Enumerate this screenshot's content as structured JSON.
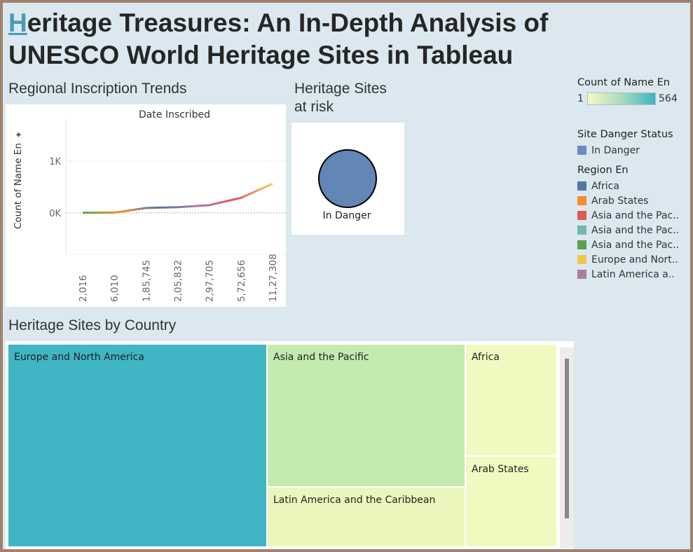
{
  "dashboard": {
    "title_first_letter": "H",
    "title_line1_rest": "eritage Treasures: An In-Depth Analysis of",
    "title_line2": "UNESCO World Heritage Sites in Tableau"
  },
  "line_chart": {
    "section_title": "Regional Inscription Trends",
    "chart_data": {
      "type": "line",
      "title": "Date Inscribed",
      "xlabel": "",
      "ylabel": "Count of Name En",
      "x_tick_labels": [
        "2,016",
        "6,010",
        "1,85,745",
        "2,05,832",
        "2,97,705",
        "5,72,656",
        "11,27,308"
      ],
      "x": [
        2016,
        6010,
        185745,
        205832,
        297705,
        572656,
        1127308
      ],
      "values": [
        2,
        5,
        95,
        110,
        150,
        290,
        565
      ],
      "y_tick_labels": [
        "0K",
        "1K"
      ],
      "ylim": [
        -800,
        1800
      ],
      "gradient_colors": [
        "#59a14f",
        "#f28e2b",
        "#4e79a7",
        "#b07aa1",
        "#e15759",
        "#f1ce63"
      ],
      "grid": true,
      "zero_line": true
    }
  },
  "danger_panel": {
    "section_title_line1": "Heritage Sites",
    "section_title_line2": "at risk",
    "circle_label": "In Danger",
    "circle_color": "#6286b5"
  },
  "legends": {
    "count": {
      "title": "Count of Name En",
      "min_label": "1",
      "max_label": "564",
      "colors": [
        "#f6f8c6",
        "#a8dcc0",
        "#3db3c2"
      ]
    },
    "danger": {
      "title": "Site Danger Status",
      "items": [
        {
          "label": "In Danger",
          "color": "#6b8cc3"
        }
      ]
    },
    "region": {
      "title": "Region En",
      "items": [
        {
          "label": "Africa",
          "color": "#4e79a7"
        },
        {
          "label": "Arab States",
          "color": "#f28e2b"
        },
        {
          "label": "Asia and the Pac..",
          "color": "#e15759"
        },
        {
          "label": "Asia and the Pac..",
          "color": "#76b7b2"
        },
        {
          "label": "Asia and the Pac..",
          "color": "#59a14f"
        },
        {
          "label": "Europe and Nort..",
          "color": "#edc948"
        },
        {
          "label": "Latin America a..",
          "color": "#b07aa1"
        }
      ]
    }
  },
  "treemap": {
    "section_title": "Heritage Sites by Country",
    "cells": [
      {
        "label": "Europe and North America",
        "color": "#40b5c4"
      },
      {
        "label": "Asia and the Pacific",
        "color": "#c4eab0"
      },
      {
        "label": "Latin America and the Caribbean",
        "color": "#ebf6bd"
      },
      {
        "label": "Africa",
        "color": "#f2f9c0"
      },
      {
        "label": "Arab States",
        "color": "#f2f9c0"
      }
    ]
  }
}
